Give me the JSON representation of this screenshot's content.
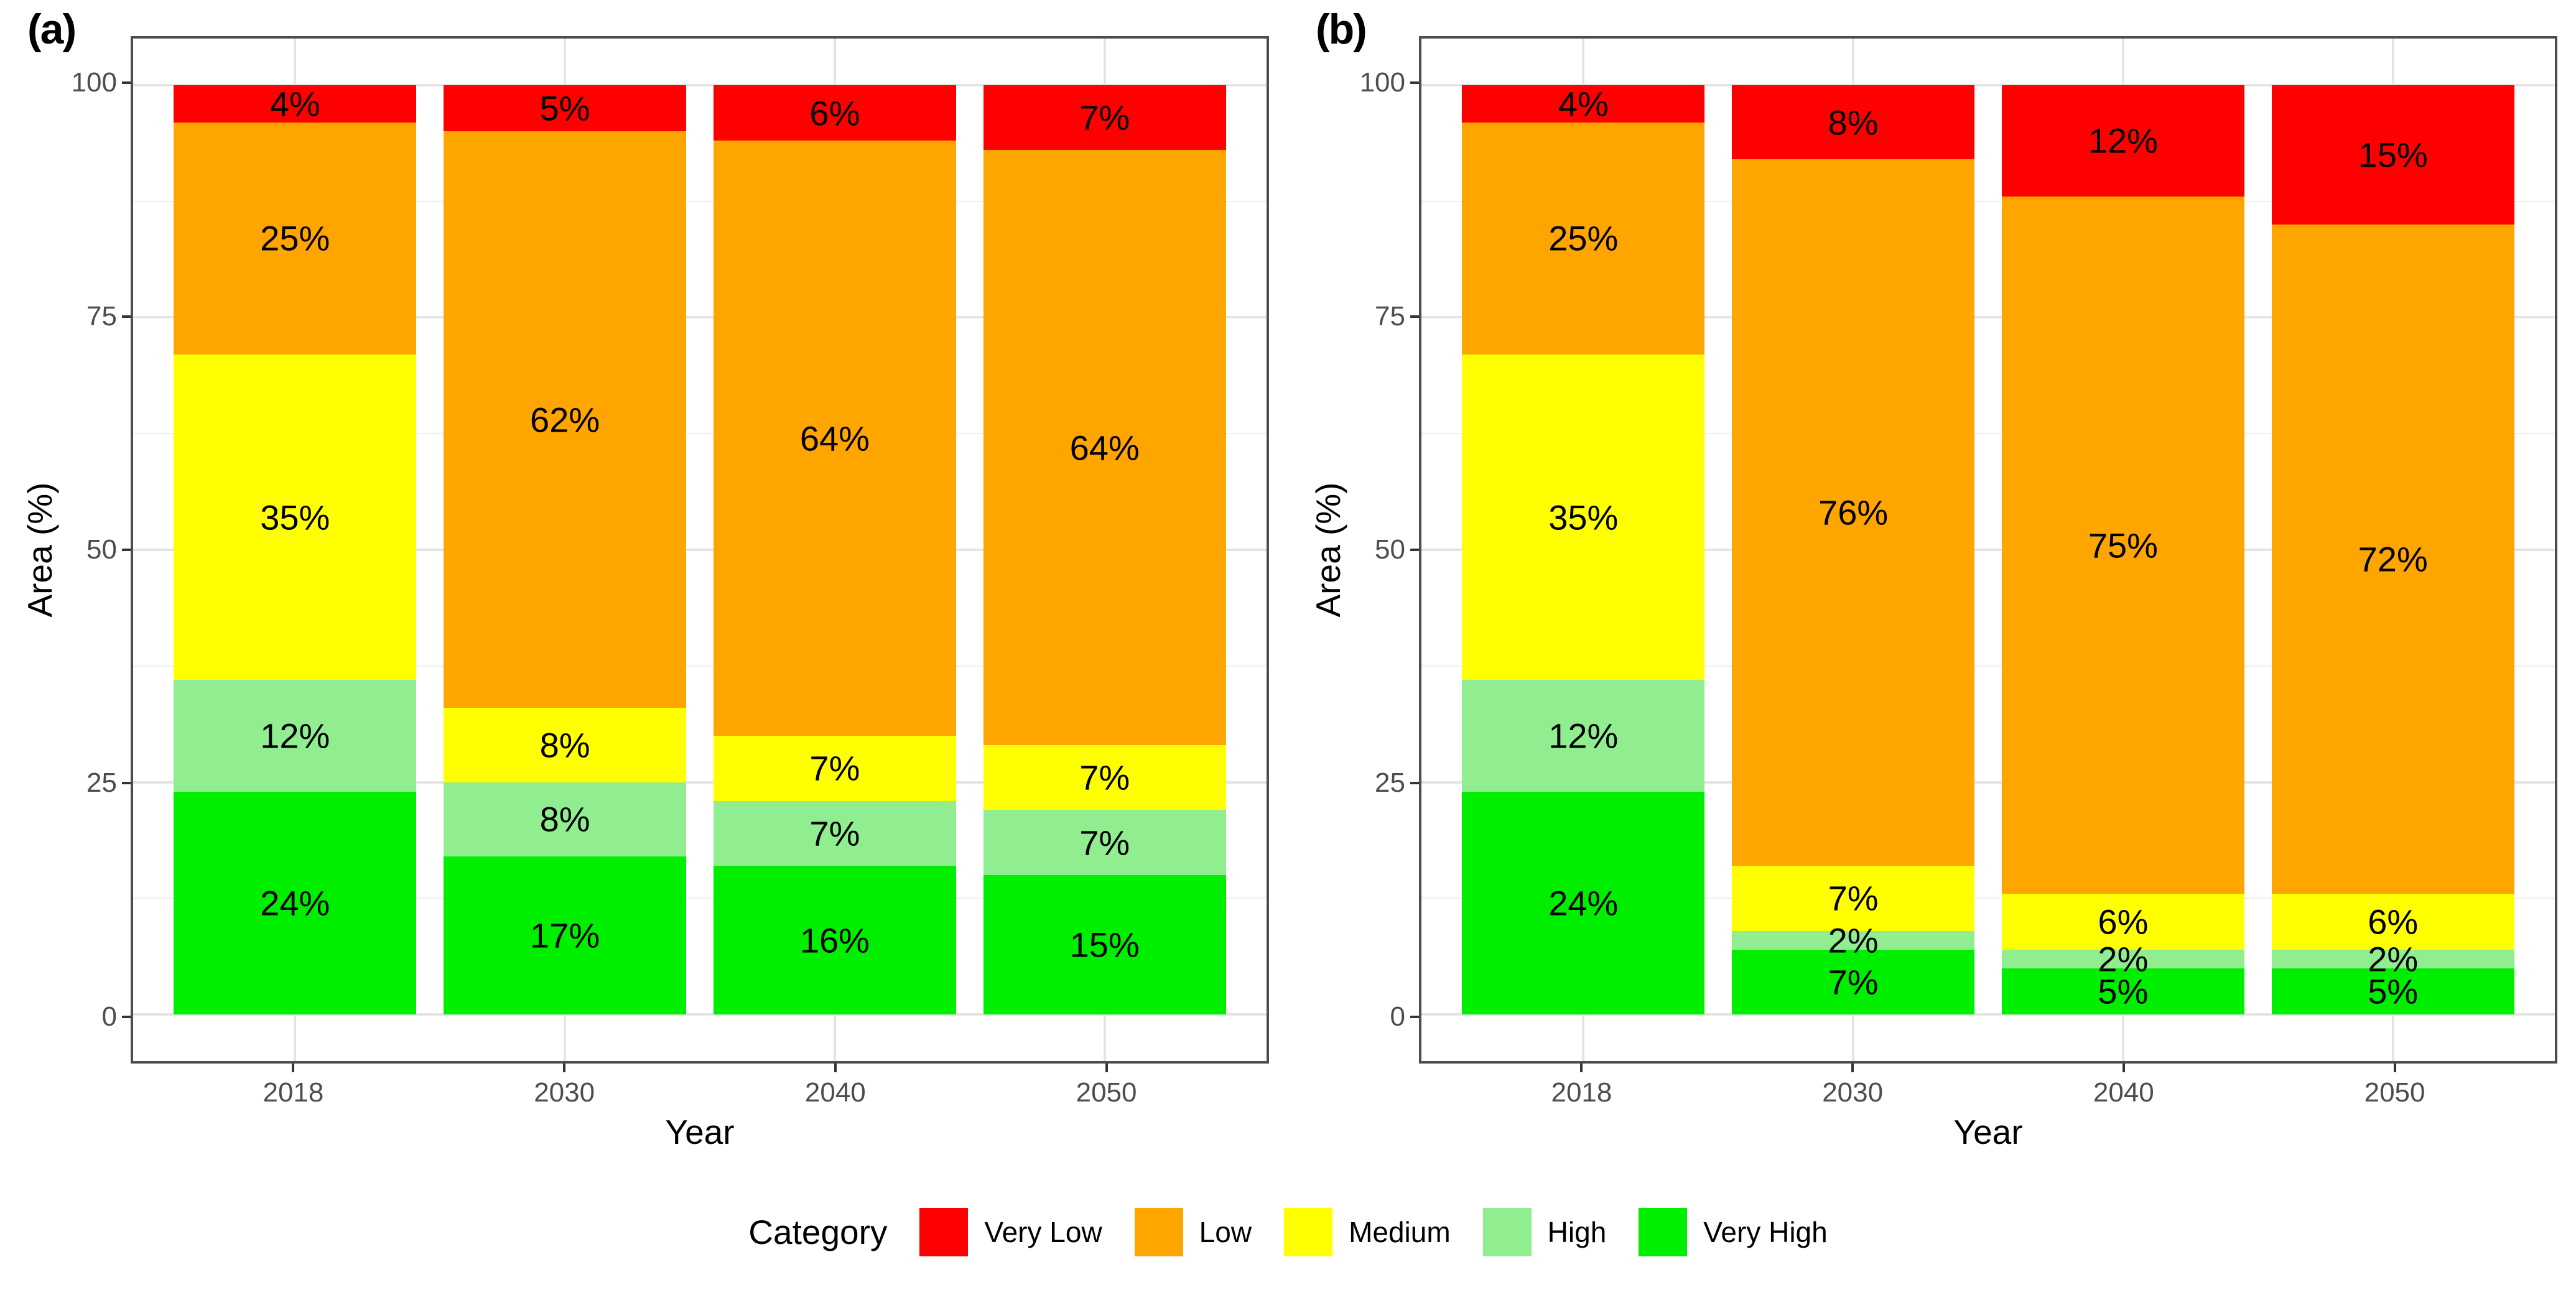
{
  "chart_data": [
    {
      "type": "bar",
      "stacked": true,
      "panel_label": "(a)",
      "xlabel": "Year",
      "ylabel": "Area (%)",
      "categories": [
        "2018",
        "2030",
        "2040",
        "2050"
      ],
      "series": [
        {
          "name": "Very High",
          "color": "#00EE00",
          "values": [
            24,
            17,
            16,
            15
          ]
        },
        {
          "name": "High",
          "color": "#90EE90",
          "values": [
            12,
            8,
            7,
            7
          ]
        },
        {
          "name": "Medium",
          "color": "#FFFF00",
          "values": [
            35,
            8,
            7,
            7
          ]
        },
        {
          "name": "Low",
          "color": "#FFA500",
          "values": [
            25,
            62,
            64,
            64
          ]
        },
        {
          "name": "Very Low",
          "color": "#FF0000",
          "values": [
            4,
            5,
            6,
            7
          ]
        }
      ],
      "bar_label_suffix": "%",
      "ylim": [
        0,
        100
      ],
      "y_ticks": [
        0,
        25,
        50,
        75,
        100
      ],
      "grid": "major-and-minor",
      "legend_position": "bottom"
    },
    {
      "type": "bar",
      "stacked": true,
      "panel_label": "(b)",
      "xlabel": "Year",
      "ylabel": "Area (%)",
      "categories": [
        "2018",
        "2030",
        "2040",
        "2050"
      ],
      "series": [
        {
          "name": "Very High",
          "color": "#00EE00",
          "values": [
            24,
            7,
            5,
            5
          ]
        },
        {
          "name": "High",
          "color": "#90EE90",
          "values": [
            12,
            2,
            2,
            2
          ]
        },
        {
          "name": "Medium",
          "color": "#FFFF00",
          "values": [
            35,
            7,
            6,
            6
          ]
        },
        {
          "name": "Low",
          "color": "#FFA500",
          "values": [
            25,
            76,
            75,
            72
          ]
        },
        {
          "name": "Very Low",
          "color": "#FF0000",
          "values": [
            4,
            8,
            12,
            15
          ]
        }
      ],
      "bar_label_suffix": "%",
      "ylim": [
        0,
        100
      ],
      "y_ticks": [
        0,
        25,
        50,
        75,
        100
      ],
      "grid": "major-and-minor",
      "legend_position": "bottom"
    }
  ],
  "legend": {
    "title": "Category",
    "items": [
      {
        "label": "Very Low",
        "color": "#FF0000"
      },
      {
        "label": "Low",
        "color": "#FFA500"
      },
      {
        "label": "Medium",
        "color": "#FFFF00"
      },
      {
        "label": "High",
        "color": "#90EE90"
      },
      {
        "label": "Very High",
        "color": "#00EE00"
      }
    ]
  }
}
